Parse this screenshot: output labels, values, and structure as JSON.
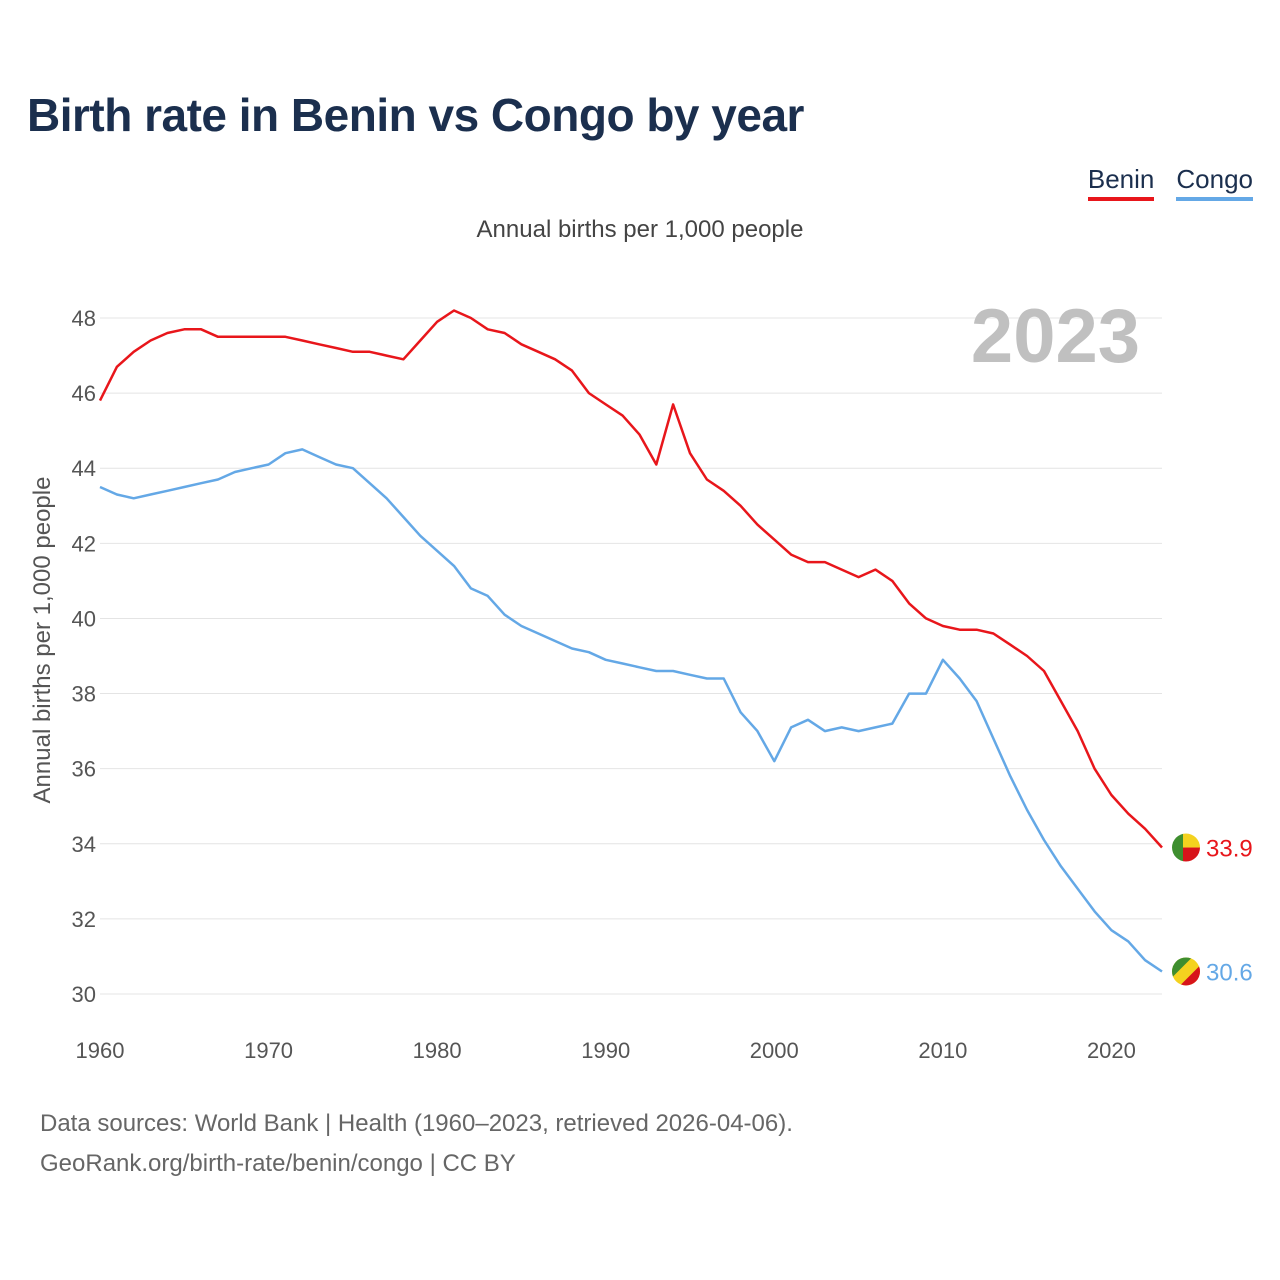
{
  "title": "Birth rate in Benin vs Congo by year",
  "subtitle": "Annual births per 1,000 people",
  "footer": {
    "line1": "Data sources: World Bank | Health (1960–2023, retrieved 2026-04-06).",
    "line2": "GeoRank.org/birth-rate/benin/congo | CC BY"
  },
  "colors": {
    "benin": "#e8161b",
    "congo": "#64a8e6",
    "grid": "#e4e4e4",
    "title": "#1b2f4e"
  },
  "chart_data": {
    "type": "line",
    "title": "Birth rate in Benin vs Congo by year",
    "ylabel": "Annual births per 1,000 people",
    "xlabel": "",
    "xlim": [
      1960,
      2023
    ],
    "ylim": [
      30,
      48
    ],
    "x_ticks": [
      1960,
      1970,
      1980,
      1990,
      2000,
      2010,
      2020
    ],
    "y_ticks": [
      30,
      32,
      34,
      36,
      38,
      40,
      42,
      44,
      46,
      48
    ],
    "grid": true,
    "legend": "top-right",
    "year_badge": "2023",
    "x": [
      1960,
      1961,
      1962,
      1963,
      1964,
      1965,
      1966,
      1967,
      1968,
      1969,
      1970,
      1971,
      1972,
      1973,
      1974,
      1975,
      1976,
      1977,
      1978,
      1979,
      1980,
      1981,
      1982,
      1983,
      1984,
      1985,
      1986,
      1987,
      1988,
      1989,
      1990,
      1991,
      1992,
      1993,
      1994,
      1995,
      1996,
      1997,
      1998,
      1999,
      2000,
      2001,
      2002,
      2003,
      2004,
      2005,
      2006,
      2007,
      2008,
      2009,
      2010,
      2011,
      2012,
      2013,
      2014,
      2015,
      2016,
      2017,
      2018,
      2019,
      2020,
      2021,
      2022,
      2023
    ],
    "series": [
      {
        "name": "Benin",
        "color": "#e8161b",
        "end_label": "33.9",
        "values": [
          45.8,
          46.7,
          47.1,
          47.4,
          47.6,
          47.7,
          47.7,
          47.5,
          47.5,
          47.5,
          47.5,
          47.5,
          47.4,
          47.3,
          47.2,
          47.1,
          47.1,
          47.0,
          46.9,
          47.4,
          47.9,
          48.2,
          48.0,
          47.7,
          47.6,
          47.3,
          47.1,
          46.9,
          46.6,
          46.0,
          45.7,
          45.4,
          44.9,
          44.1,
          45.7,
          44.4,
          43.7,
          43.4,
          43.0,
          42.5,
          42.1,
          41.7,
          41.5,
          41.5,
          41.3,
          41.1,
          41.3,
          41.0,
          40.4,
          40.0,
          39.8,
          39.7,
          39.7,
          39.6,
          39.3,
          39.0,
          38.6,
          37.8,
          37.0,
          36.0,
          35.3,
          34.8,
          34.4,
          33.9
        ]
      },
      {
        "name": "Congo",
        "color": "#64a8e6",
        "end_label": "30.6",
        "values": [
          43.5,
          43.3,
          43.2,
          43.3,
          43.4,
          43.5,
          43.6,
          43.7,
          43.9,
          44.0,
          44.1,
          44.4,
          44.5,
          44.3,
          44.1,
          44.0,
          43.6,
          43.2,
          42.7,
          42.2,
          41.8,
          41.4,
          40.8,
          40.6,
          40.1,
          39.8,
          39.6,
          39.4,
          39.2,
          39.1,
          38.9,
          38.8,
          38.7,
          38.6,
          38.6,
          38.5,
          38.4,
          38.4,
          37.5,
          37.0,
          36.2,
          37.1,
          37.3,
          37.0,
          37.1,
          37.0,
          37.1,
          37.2,
          38.0,
          38.0,
          38.9,
          38.4,
          37.8,
          36.8,
          35.8,
          34.9,
          34.1,
          33.4,
          32.8,
          32.2,
          31.7,
          31.4,
          30.9,
          30.6
        ]
      }
    ]
  }
}
